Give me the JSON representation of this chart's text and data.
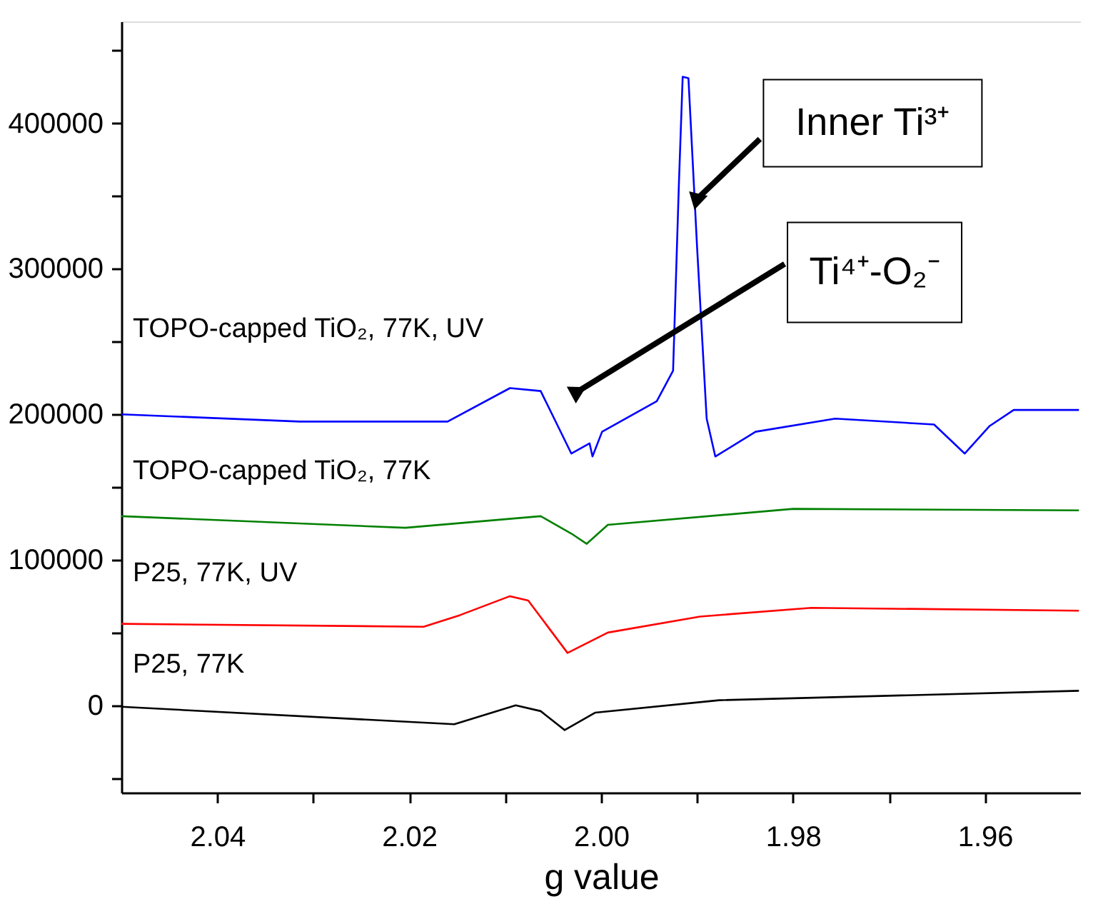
{
  "chart_data": {
    "type": "line",
    "xlabel": "g value",
    "xlim": [
      2.05,
      1.95
    ],
    "ylim": [
      -60000,
      470000
    ],
    "xticks": [
      {
        "value": 2.04,
        "label": "2.04"
      },
      {
        "value": 2.03,
        "label": null
      },
      {
        "value": 2.02,
        "label": "2.02"
      },
      {
        "value": 2.01,
        "label": null
      },
      {
        "value": 2.0,
        "label": "2.00"
      },
      {
        "value": 1.99,
        "label": null
      },
      {
        "value": 1.98,
        "label": "1.98"
      },
      {
        "value": 1.97,
        "label": null
      },
      {
        "value": 1.96,
        "label": "1.96"
      }
    ],
    "yticks": [
      {
        "value": -50000,
        "label": null
      },
      0,
      {
        "value": 50000,
        "label": null
      },
      100000,
      {
        "value": 150000,
        "label": null
      },
      200000,
      {
        "value": 250000,
        "label": null
      },
      300000,
      {
        "value": 350000,
        "label": null
      },
      400000,
      {
        "value": 450000,
        "label": null
      }
    ],
    "grid": false,
    "legend": false,
    "marker": "none",
    "line_style": "solid",
    "series": [
      {
        "name": "TOPO-capped TiO₂, 77K, UV",
        "color": "#0000ff",
        "x": [
          2.05,
          2.0314,
          2.016,
          2.0095,
          2.0063,
          2.0031,
          2.0012,
          2.0009,
          1.9999,
          1.9942,
          1.9925,
          1.9919,
          1.9915,
          1.9909,
          1.99,
          1.989,
          1.9881,
          1.9839,
          1.9756,
          1.9653,
          1.9621,
          1.9595,
          1.957,
          1.9502
        ],
        "values": [
          200000,
          195000,
          195000,
          218000,
          216000,
          173000,
          180000,
          171000,
          188000,
          209000,
          230000,
          357000,
          432000,
          431000,
          315000,
          197000,
          171000,
          188000,
          197000,
          193000,
          173000,
          192000,
          203000,
          203000
        ]
      },
      {
        "name": "TOPO-capped TiO₂, 77K",
        "color": "#008000",
        "x": [
          2.05,
          2.0204,
          2.0063,
          2.0031,
          2.0015,
          1.9993,
          1.98,
          1.9502
        ],
        "values": [
          130000,
          122000,
          130000,
          118000,
          111000,
          124000,
          135000,
          134000
        ]
      },
      {
        "name": "P25, 77K, UV",
        "color": "#ff0000",
        "x": [
          2.05,
          2.0185,
          2.0147,
          2.0095,
          2.0076,
          2.0035,
          1.9993,
          1.9897,
          1.9781,
          1.9502
        ],
        "values": [
          56000,
          54000,
          62000,
          75000,
          72000,
          36000,
          50000,
          61000,
          67000,
          65000
        ]
      },
      {
        "name": "P25, 77K",
        "color": "#000000",
        "x": [
          2.05,
          2.0153,
          2.0089,
          2.0063,
          2.0038,
          2.0006,
          1.9877,
          1.9502
        ],
        "values": [
          -1000,
          -13000,
          0,
          -4000,
          -17000,
          -5000,
          3500,
          10000
        ]
      }
    ],
    "annotations": [
      {
        "text": "Inner Ti³⁺",
        "x": 1.99,
        "y": 348000
      },
      {
        "text": "Ti⁴⁺-O₂⁻",
        "x": 2.0026,
        "y": 215000
      }
    ]
  }
}
